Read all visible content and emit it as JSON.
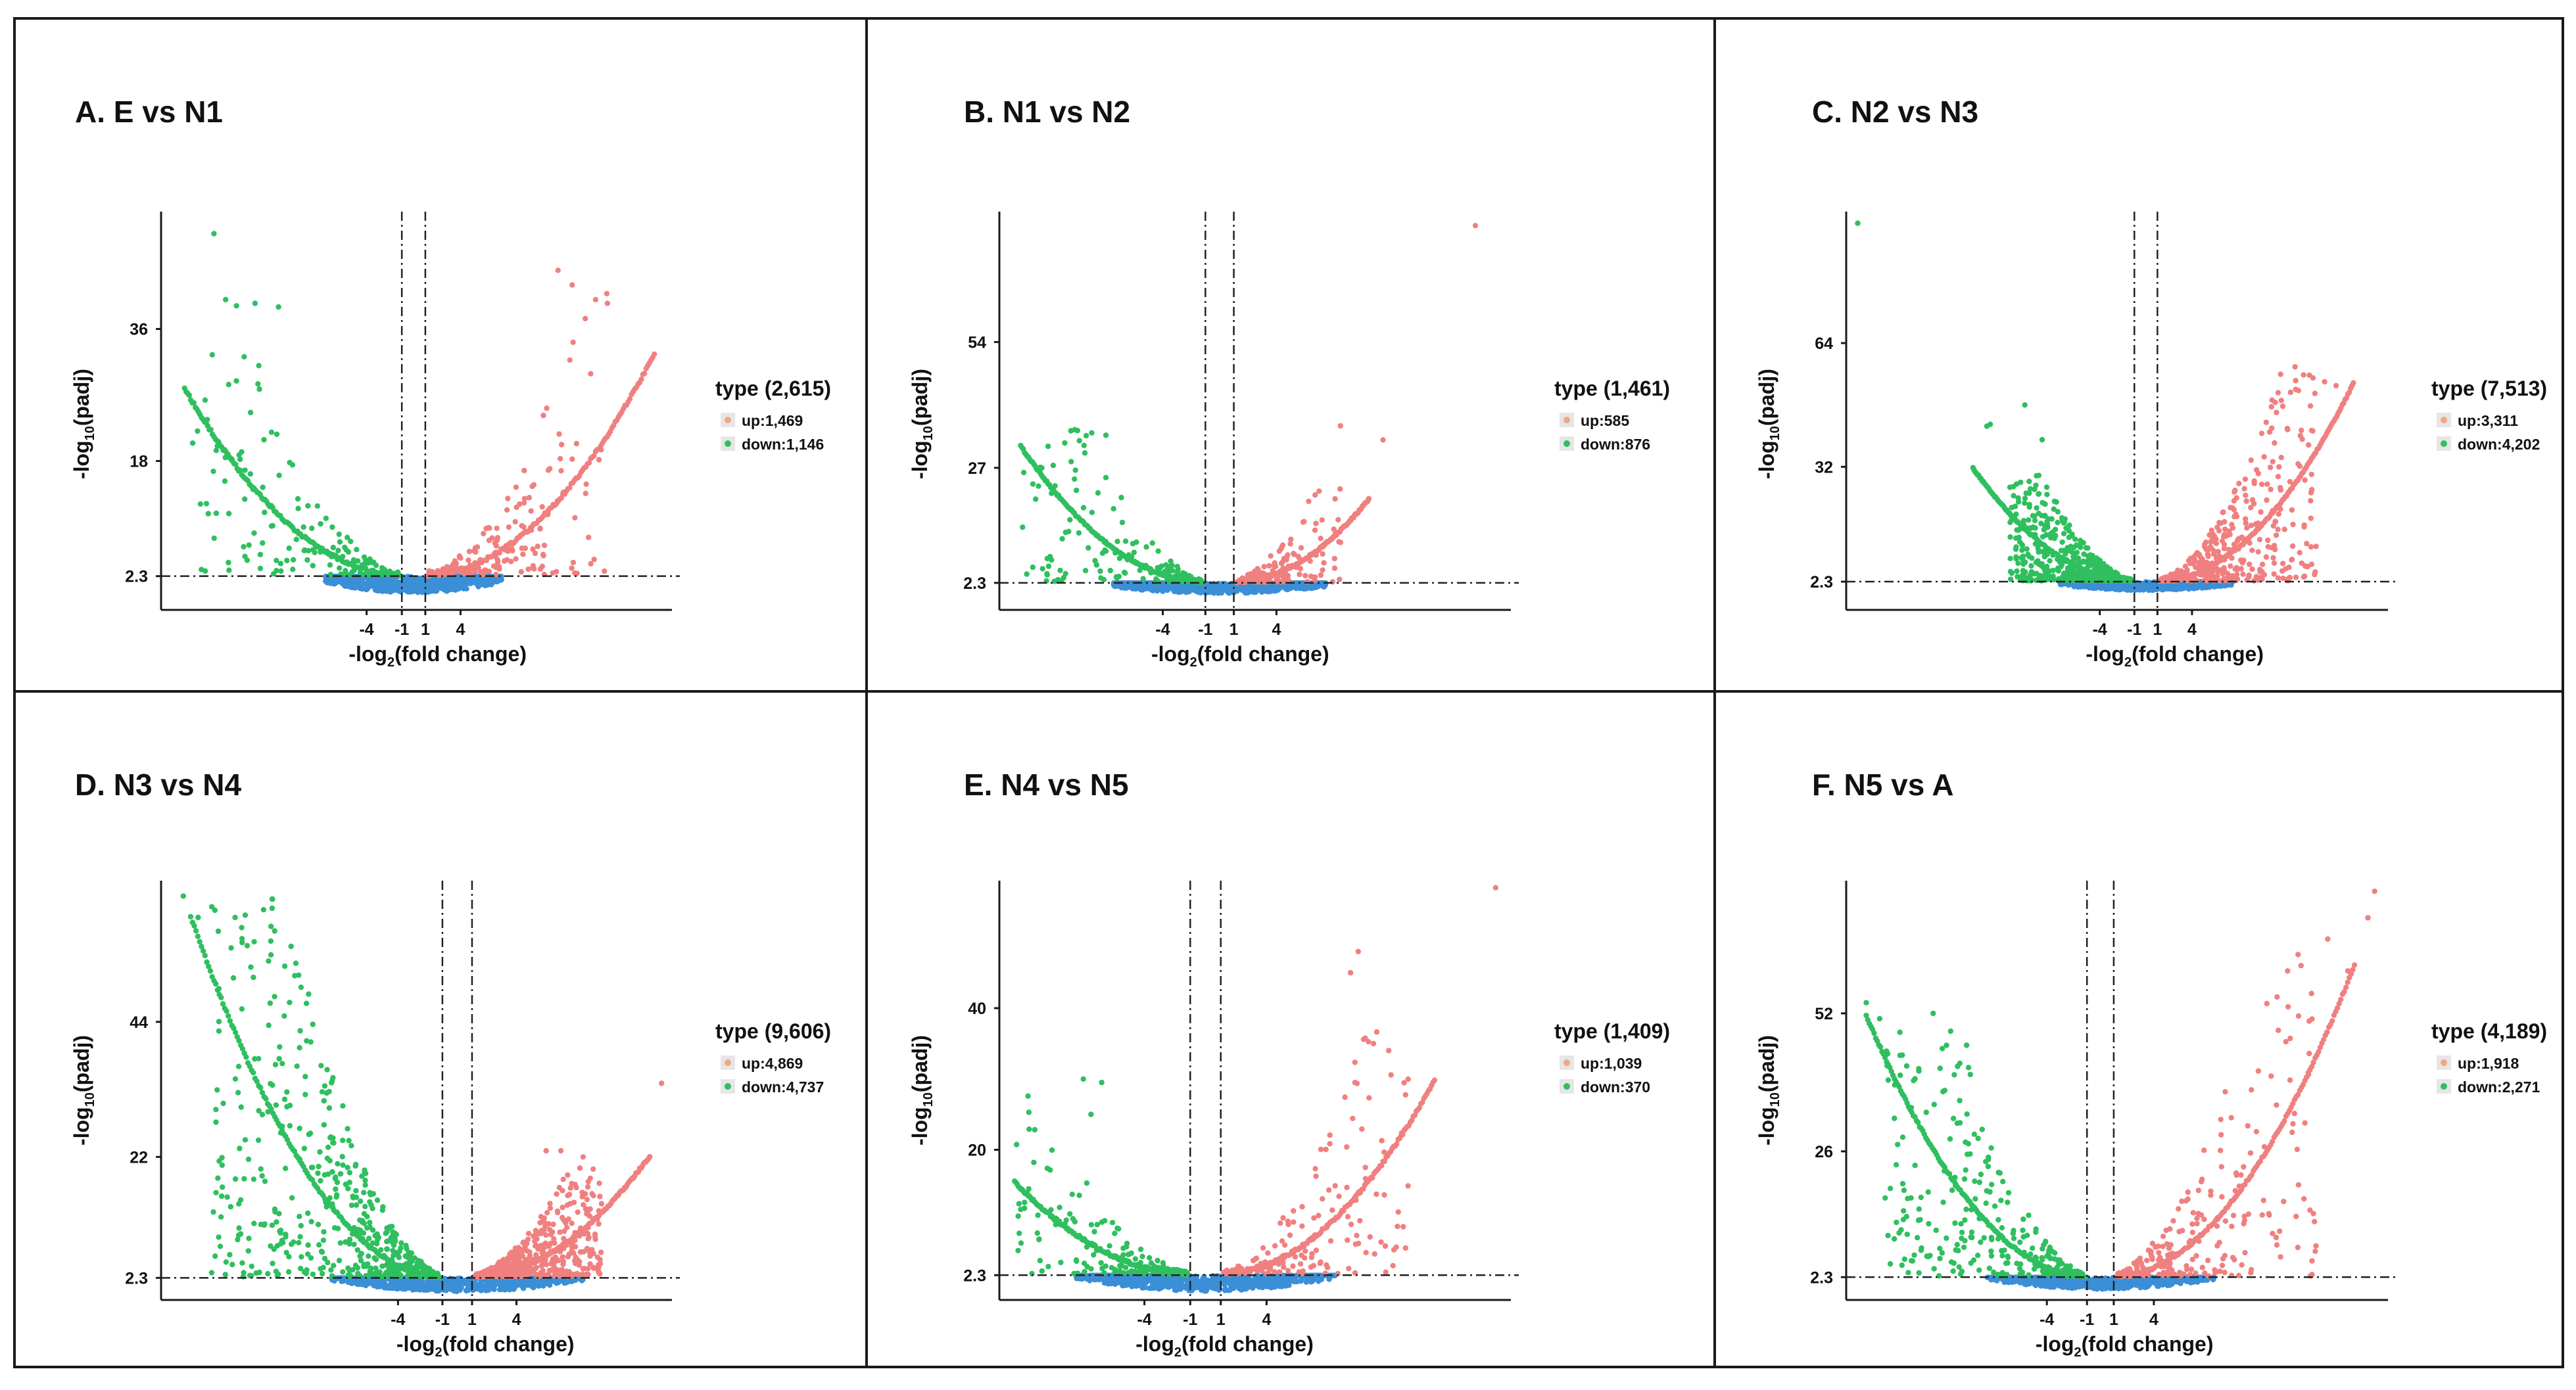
{
  "chart_data": [
    {
      "type": "scatter",
      "title": "A. E vs N1",
      "xlabel_main": "-log",
      "xlabel_sub": "2",
      "xlabel_rest": "(fold change)",
      "ylabel_main": "-log",
      "ylabel_sub": "10",
      "ylabel_rest": "(padj)",
      "xticks": [
        -4,
        -1,
        1,
        4
      ],
      "xtick_labels": [
        "-4",
        "-1",
        "1",
        "4"
      ],
      "yticks": [
        2.3,
        18,
        36
      ],
      "ytick_labels": [
        "2.3",
        "18",
        "36"
      ],
      "xlim": [
        -21.5,
        22
      ],
      "ylim": [
        -2.3,
        52
      ],
      "vlines": [
        -1,
        1
      ],
      "hline": 2.3,
      "legend": {
        "title": "type (2,615)",
        "up": "up:1,469",
        "down": "down:1,146"
      },
      "counts": {
        "up": 1469,
        "down": 1146
      },
      "up_params": {
        "xend": 20.5,
        "yend": 34,
        "spread": 0.75,
        "maxy": 46
      },
      "down_params": {
        "xend": -19.5,
        "yend": 29,
        "spread": 0.9,
        "maxy": 44
      },
      "outliers_up": [
        [
          12.3,
          44
        ],
        [
          13.5,
          42
        ],
        [
          15.5,
          40
        ],
        [
          16.5,
          39.5
        ]
      ],
      "outliers_down": [
        [
          -17,
          49
        ],
        [
          -16,
          40
        ],
        [
          -13.5,
          39.5
        ],
        [
          -11.5,
          39
        ]
      ]
    },
    {
      "type": "scatter",
      "title": "B. N1 vs N2",
      "xlabel_main": "-log",
      "xlabel_sub": "2",
      "xlabel_rest": "(fold change)",
      "ylabel_main": "-log",
      "ylabel_sub": "10",
      "ylabel_rest": "(padj)",
      "xticks": [
        -4,
        -1,
        1,
        4
      ],
      "xtick_labels": [
        "-4",
        "-1",
        "1",
        "4"
      ],
      "yticks": [
        2.3,
        27,
        54
      ],
      "ytick_labels": [
        "2.3",
        "27",
        "54"
      ],
      "xlim": [
        -15.5,
        20.5
      ],
      "ylim": [
        -3.5,
        82
      ],
      "vlines": [
        -1,
        1
      ],
      "hline": 2.3,
      "legend": {
        "title": "type (1,461)",
        "up": "up:585",
        "down": "down:876"
      },
      "counts": {
        "up": 585,
        "down": 876
      },
      "up_params": {
        "xend": 10.5,
        "yend": 21,
        "spread": 0.7,
        "maxy": 25
      },
      "down_params": {
        "xend": -14,
        "yend": 33,
        "spread": 0.9,
        "maxy": 36
      },
      "outliers_up": [
        [
          18,
          79
        ],
        [
          8.5,
          36
        ],
        [
          11.5,
          33
        ],
        [
          7,
          22
        ]
      ],
      "outliers_down": [
        [
          -10,
          35
        ],
        [
          -9,
          34.5
        ],
        [
          -8,
          34
        ]
      ]
    },
    {
      "type": "scatter",
      "title": "C. N2 vs N3",
      "xlabel_main": "-log",
      "xlabel_sub": "2",
      "xlabel_rest": "(fold change)",
      "ylabel_main": "-log",
      "ylabel_sub": "10",
      "ylabel_rest": "(padj)",
      "xticks": [
        -4,
        -1,
        1,
        4
      ],
      "xtick_labels": [
        "-4",
        "-1",
        "1",
        "4"
      ],
      "yticks": [
        2.3,
        32,
        64
      ],
      "ytick_labels": [
        "2.3",
        "32",
        "64"
      ],
      "xlim": [
        -26,
        21
      ],
      "ylim": [
        -5,
        98
      ],
      "vlines": [
        -1,
        1
      ],
      "hline": 2.3,
      "legend": {
        "title": "type (7,513)",
        "up": "up:3,311",
        "down": "down:4,202"
      },
      "counts": {
        "up": 3311,
        "down": 4202
      },
      "up_params": {
        "xend": 18,
        "yend": 56,
        "spread": 0.75,
        "maxy": 58
      },
      "down_params": {
        "xend": -15,
        "yend": 33,
        "spread": 0.7,
        "maxy": 30
      },
      "outliers_up": [
        [
          14.5,
          55
        ],
        [
          15.5,
          54
        ],
        [
          16.5,
          53
        ],
        [
          13,
          52
        ]
      ],
      "outliers_down": [
        [
          -25,
          95
        ],
        [
          -10.5,
          48
        ],
        [
          -13.5,
          43
        ],
        [
          -13.8,
          42.5
        ],
        [
          -9,
          39
        ]
      ]
    },
    {
      "type": "scatter",
      "title": "D. N3 vs N4",
      "xlabel_main": "-log",
      "xlabel_sub": "2",
      "xlabel_rest": "(fold change)",
      "ylabel_main": "-log",
      "ylabel_sub": "10",
      "ylabel_rest": "(padj)",
      "xticks": [
        -4,
        -1,
        1,
        4
      ],
      "xtick_labels": [
        "-4",
        "-1",
        "1",
        "4"
      ],
      "yticks": [
        2.3,
        22,
        44
      ],
      "ytick_labels": [
        "2.3",
        "22",
        "44"
      ],
      "xlim": [
        -20,
        14.5
      ],
      "ylim": [
        -1.3,
        67
      ],
      "vlines": [
        -1,
        1
      ],
      "hline": 2.3,
      "legend": {
        "title": "type (9,606)",
        "up": "up:4,869",
        "down": "down:4,737"
      },
      "counts": {
        "up": 4869,
        "down": 4737
      },
      "up_params": {
        "xend": 13,
        "yend": 23,
        "spread": 0.65,
        "maxy": 21
      },
      "down_params": {
        "xend": -18,
        "yend": 64,
        "spread": 0.85,
        "maxy": 64
      },
      "outliers_up": [
        [
          13.8,
          34
        ],
        [
          6,
          23
        ],
        [
          7,
          23
        ],
        [
          8.5,
          22
        ]
      ],
      "outliers_down": [
        [
          -18.5,
          64.5
        ],
        [
          -17.5,
          61
        ],
        [
          -15,
          61
        ],
        [
          -12.5,
          64
        ],
        [
          -12.5,
          62.5
        ]
      ]
    },
    {
      "type": "scatter",
      "title": "E. N4 vs N5",
      "xlabel_main": "-log",
      "xlabel_sub": "2",
      "xlabel_rest": "(fold change)",
      "ylabel_main": "-log",
      "ylabel_sub": "10",
      "ylabel_rest": "(padj)",
      "xticks": [
        -4,
        -1,
        1,
        4
      ],
      "xtick_labels": [
        "-4",
        "-1",
        "1",
        "4"
      ],
      "yticks": [
        2.3,
        20,
        40
      ],
      "ytick_labels": [
        "2.3",
        "20",
        "40"
      ],
      "xlim": [
        -13.5,
        20
      ],
      "ylim": [
        -1.2,
        58
      ],
      "vlines": [
        -1,
        1
      ],
      "hline": 2.3,
      "legend": {
        "title": "type (1,409)",
        "up": "up:1,039",
        "down": "down:370"
      },
      "counts": {
        "up": 1039,
        "down": 370
      },
      "up_params": {
        "xend": 15,
        "yend": 31,
        "spread": 0.8,
        "maxy": 44
      },
      "down_params": {
        "xend": -12.5,
        "yend": 16,
        "spread": 0.9,
        "maxy": 30
      },
      "outliers_up": [
        [
          19,
          57
        ],
        [
          10,
          48
        ],
        [
          9.5,
          45
        ],
        [
          11,
          35
        ],
        [
          12,
          34
        ]
      ],
      "outliers_down": [
        [
          -8,
          30
        ],
        [
          -6.8,
          29.5
        ],
        [
          -7.5,
          25
        ]
      ]
    },
    {
      "type": "scatter",
      "title": "F. N5 vs A",
      "xlabel_main": "-log",
      "xlabel_sub": "2",
      "xlabel_rest": "(fold change)",
      "ylabel_main": "-log",
      "ylabel_sub": "10",
      "ylabel_rest": "(padj)",
      "xticks": [
        -4,
        -1,
        1,
        4
      ],
      "xtick_labels": [
        "-4",
        "-1",
        "1",
        "4"
      ],
      "yticks": [
        2.3,
        26,
        52
      ],
      "ytick_labels": [
        "2.3",
        "26",
        "52"
      ],
      "xlim": [
        -19,
        21.5
      ],
      "ylim": [
        -2,
        77
      ],
      "vlines": [
        -1,
        1
      ],
      "hline": 2.3,
      "legend": {
        "title": "type (4,189)",
        "up": "up:1,918",
        "down": "down:2,271"
      },
      "counts": {
        "up": 1918,
        "down": 2271
      },
      "up_params": {
        "xend": 19,
        "yend": 64,
        "spread": 0.78,
        "maxy": 72
      },
      "down_params": {
        "xend": -17.5,
        "yend": 54,
        "spread": 0.85,
        "maxy": 49
      },
      "outliers_up": [
        [
          20.5,
          75
        ],
        [
          20,
          70
        ],
        [
          17,
          66
        ],
        [
          18.5,
          60
        ],
        [
          15,
          61
        ],
        [
          14,
          60
        ]
      ],
      "outliers_down": [
        [
          -17.5,
          54
        ],
        [
          -16.5,
          51
        ],
        [
          -12.5,
          52
        ],
        [
          -11.5,
          46
        ],
        [
          -10,
          46
        ]
      ]
    }
  ],
  "colors": {
    "up": "#f08080",
    "down": "#2fbf5f",
    "ns": "#3b8fd6",
    "up_key": "#f4a582",
    "down_key": "#2fbf5f"
  }
}
